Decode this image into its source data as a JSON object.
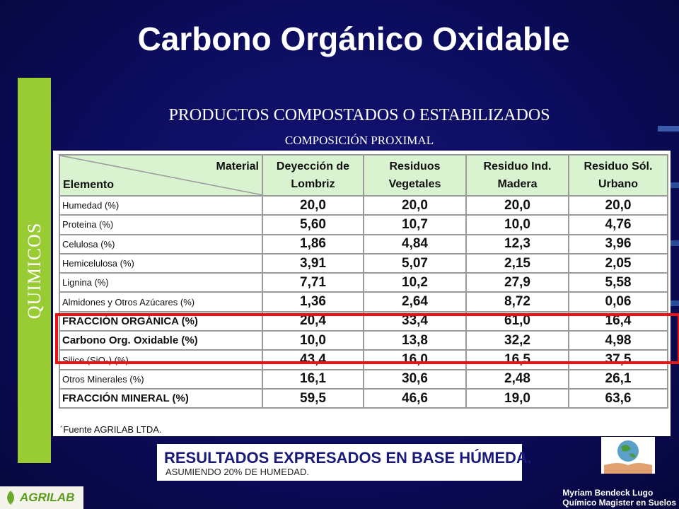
{
  "header": {
    "title": "Carbono Orgánico Oxidable"
  },
  "side_label": "QUIMICOS",
  "subtitle": "PRODUCTOS COMPOSTADOS O ESTABILIZADOS",
  "subheading": "COMPOSICIÓN PROXIMAL",
  "table": {
    "corner_top": "Material",
    "corner_bottom": "Elemento",
    "columns": [
      [
        "Deyección de",
        "Lombriz"
      ],
      [
        "Residuos",
        "Vegetales"
      ],
      [
        "Residuo Ind.",
        "Madera"
      ],
      [
        "Residuo Sól.",
        "Urbano"
      ]
    ],
    "rows": [
      [
        "Humedad (%)",
        "20,0",
        "20,0",
        "20,0",
        "20,0"
      ],
      [
        "Proteina (%)",
        "5,60",
        "10,7",
        "10,0",
        "4,76"
      ],
      [
        "Celulosa (%)",
        "1,86",
        "4,84",
        "12,3",
        "3,96"
      ],
      [
        "Hemicelulosa (%)",
        "3,91",
        "5,07",
        "2,15",
        "2,05"
      ],
      [
        "Lignina (%)",
        "7,71",
        "10,2",
        "27,9",
        "5,58"
      ],
      [
        "Almidones y Otros Azúcares (%)",
        "1,36",
        "2,64",
        "8,72",
        "0,06"
      ],
      [
        "FRACCIÓN ORGÁNICA (%)",
        "20,4",
        "33,4",
        "61,0",
        "16,4"
      ],
      [
        "Carbono Org. Oxidable (%)",
        "10,0",
        "13,8",
        "32,2",
        "4,98"
      ],
      [
        "Silice (SiO₂) (%)",
        "43,4",
        "16,0",
        "16,5",
        "37,5"
      ],
      [
        "Otros Minerales (%)",
        "16,1",
        "30,6",
        "2,48",
        "26,1"
      ],
      [
        "FRACCIÓN MINERAL (%)",
        "59,5",
        "46,6",
        "19,0",
        "63,6"
      ]
    ],
    "footnote": "´Fuente AGRILAB LTDA."
  },
  "banner": {
    "main": "RESULTADOS EXPRESADOS EN BASE HÚMEDA.",
    "sub": "ASUMIENDO 20% DE HUMEDAD."
  },
  "logo": "AGRILAB",
  "author": {
    "name": "Myriam Bendeck Lugo",
    "role": "Químico Magister en Suelos"
  }
}
